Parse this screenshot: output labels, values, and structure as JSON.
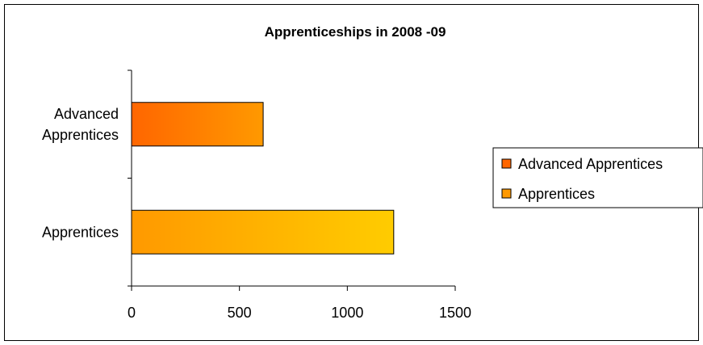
{
  "chart_data": {
    "type": "bar",
    "orientation": "horizontal",
    "title": "Apprenticeships in 2008 -09",
    "categories": [
      "Advanced Apprentices",
      "Apprentices"
    ],
    "category_lines": [
      [
        "Advanced",
        "Apprentices"
      ],
      [
        "Apprentices"
      ]
    ],
    "values": [
      610,
      1215
    ],
    "xlim": [
      0,
      1500
    ],
    "xticks": [
      "0",
      "500",
      "1000",
      "1500"
    ],
    "tick_values": [
      0,
      500,
      1000,
      1500
    ],
    "xlabel": "",
    "ylabel": "",
    "grid": false,
    "legend": {
      "placement": "right",
      "entries": [
        "Advanced Apprentices",
        "Apprentices"
      ]
    },
    "colors": {
      "Advanced Apprentices": [
        "#FF6600",
        "#FF9900"
      ],
      "Apprentices": [
        "#FF9900",
        "#FFCC00"
      ]
    }
  }
}
